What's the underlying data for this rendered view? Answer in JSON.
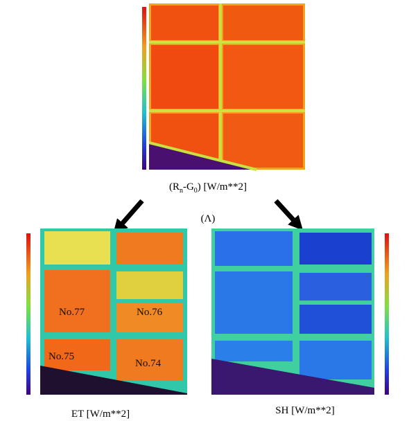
{
  "top": {
    "caption": {
      "open": "(R",
      "sub1": "n",
      "mid": "-G",
      "sub2": "0",
      "close": ")  [W/m**2]"
    }
  },
  "middle_label": "(Λ)",
  "left": {
    "caption": "ET  [W/m**2]",
    "plot_labels": [
      "No.77",
      "No.76",
      "No.75",
      "No.74"
    ]
  },
  "right": {
    "caption": "SH  [W/m**2]"
  }
}
